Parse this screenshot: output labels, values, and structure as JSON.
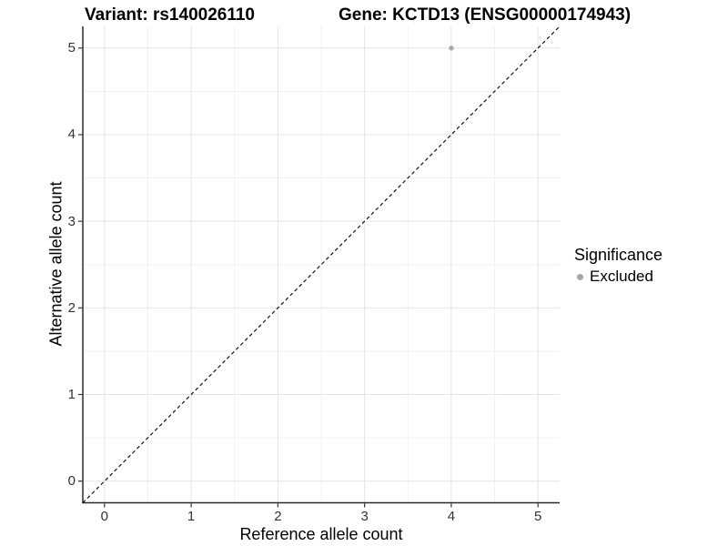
{
  "chart_data": {
    "type": "scatter",
    "title_left": "Variant: rs140026110",
    "title_right": "Gene: KCTD13 (ENSG00000174943)",
    "xlabel": "Reference allele count",
    "ylabel": "Alternative allele count",
    "xlim": [
      -0.25,
      5.25
    ],
    "ylim": [
      -0.25,
      5.25
    ],
    "x_ticks": [
      0,
      1,
      2,
      3,
      4,
      5
    ],
    "y_ticks": [
      0,
      1,
      2,
      3,
      4,
      5
    ],
    "minor_ticks": [
      0.5,
      1.5,
      2.5,
      3.5,
      4.5
    ],
    "grid": "major+minor on white panel",
    "points": [
      {
        "x": 4,
        "y": 5,
        "series": "Excluded"
      }
    ],
    "reference_line": {
      "type": "abline",
      "slope": 1,
      "intercept": 0,
      "style": "dashed",
      "color": "#000000"
    },
    "legend": {
      "title": "Significance",
      "position": "right",
      "items": [
        {
          "label": "Excluded",
          "color": "#a6a6a6",
          "marker": "circle"
        }
      ]
    },
    "colors": {
      "point": "#aaaaaa",
      "grid_major": "#e4e4e4",
      "grid_minor": "#f1f1f1",
      "axis_line": "#2b2b2b",
      "tick_mark": "#333333",
      "text": "#000000"
    }
  }
}
